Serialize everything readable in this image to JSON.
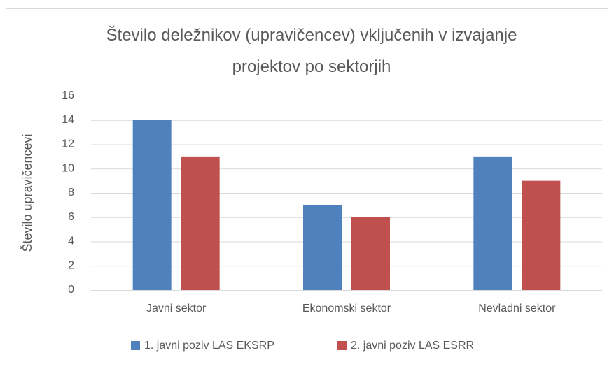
{
  "chart_data": {
    "type": "bar",
    "title": "Število deležnikov (upravičencev) vključenih v izvajanje projektov po sektorjih",
    "y_label": "Število upravičencevi",
    "categories": [
      "Javni sektor",
      "Ekonomski sektor",
      "Nevladni sektor"
    ],
    "series": [
      {
        "name": "1. javni poziv LAS EKSRP",
        "color": "#4f81bd",
        "values": [
          14,
          7,
          11
        ]
      },
      {
        "name": "2. javni poziv LAS ESRR",
        "color": "#c0504d",
        "values": [
          11,
          6,
          9
        ]
      }
    ],
    "ylim": [
      0,
      16
    ],
    "yticks": [
      0,
      2,
      4,
      6,
      8,
      10,
      12,
      14,
      16
    ],
    "grid": true,
    "legend": "bottom"
  }
}
